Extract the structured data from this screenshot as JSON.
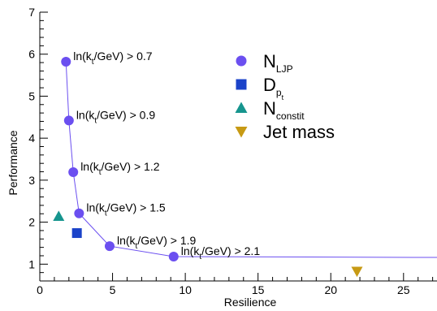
{
  "chart_data": {
    "type": "scatter",
    "xlabel": "Resilience",
    "ylabel": "Performance",
    "xlim": [
      0,
      27.3
    ],
    "ylim": [
      0.6,
      7
    ],
    "x_ticks": [
      0,
      5,
      10,
      15,
      20,
      25
    ],
    "y_ticks": [
      1,
      2,
      3,
      4,
      5,
      6,
      7
    ],
    "legend_position": "top-right",
    "series": [
      {
        "name": "N_LJP",
        "marker": "circle",
        "color": "#6b4ff0",
        "connected": true,
        "points": [
          {
            "x": 1.8,
            "y": 5.82,
            "label": "ln(k_t/GeV) > 0.7"
          },
          {
            "x": 2.0,
            "y": 4.42,
            "label": "ln(k_t/GeV) > 0.9"
          },
          {
            "x": 2.3,
            "y": 3.19,
            "label": "ln(k_t/GeV) > 1.2"
          },
          {
            "x": 2.7,
            "y": 2.21,
            "label": "ln(k_t/GeV) > 1.5"
          },
          {
            "x": 4.8,
            "y": 1.43,
            "label": "ln(k_t/GeV) > 1.9"
          },
          {
            "x": 9.2,
            "y": 1.18,
            "label": "ln(k_t/GeV) > 2.1"
          }
        ],
        "line_tail": {
          "x": 27.3,
          "y": 1.16
        }
      },
      {
        "name": "D_pt",
        "marker": "square",
        "color": "#1b43c9",
        "points": [
          {
            "x": 2.55,
            "y": 1.74
          }
        ]
      },
      {
        "name": "N_constit",
        "marker": "triangle-up",
        "color": "#16958e",
        "points": [
          {
            "x": 1.3,
            "y": 2.14
          }
        ]
      },
      {
        "name": "Jet mass",
        "marker": "triangle-down",
        "color": "#c79a14",
        "points": [
          {
            "x": 21.8,
            "y": 0.83
          }
        ]
      }
    ],
    "legend": [
      {
        "base": "N",
        "sub": "LJP",
        "subsub": "",
        "marker": "circle",
        "color": "#6b4ff0"
      },
      {
        "base": "D",
        "sub": "p",
        "subsub": "t",
        "marker": "square",
        "color": "#1b43c9"
      },
      {
        "base": "N",
        "sub": "constit",
        "subsub": "",
        "marker": "triangle-up",
        "color": "#16958e"
      },
      {
        "base": "Jet mass",
        "sub": "",
        "subsub": "",
        "marker": "triangle-down",
        "color": "#c79a14"
      }
    ]
  }
}
